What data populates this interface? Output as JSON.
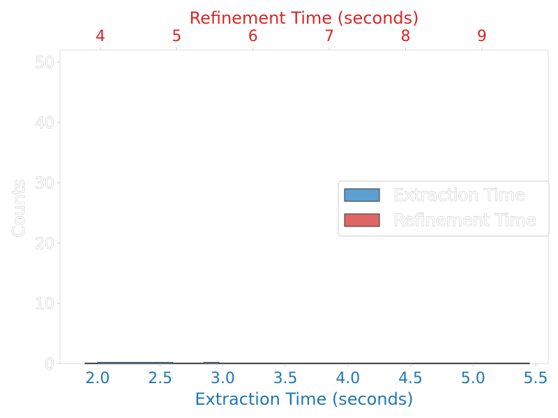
{
  "chart_data": {
    "type": "bar",
    "xlabel": "Extraction Time (seconds)",
    "x2label": "Refinement Time (seconds)",
    "ylabel": "Counts",
    "x_ticks": [
      "2.0",
      "2.5",
      "3.0",
      "3.5",
      "4.0",
      "4.5",
      "5.0",
      "5.5"
    ],
    "x2_ticks": [
      "4",
      "5",
      "6",
      "7",
      "8",
      "9"
    ],
    "y_ticks": [
      "0",
      "10",
      "20",
      "30",
      "40",
      "50"
    ],
    "xlim": [
      1.7,
      5.6
    ],
    "x2lim": [
      3.47,
      9.87
    ],
    "ylim": [
      0,
      52
    ],
    "series": [
      {
        "name": "Extraction Time",
        "axis": "bottom",
        "color": "#1f77b4",
        "bins": [
          {
            "x0": 1.9,
            "x1": 2.0,
            "value": 0
          },
          {
            "x0": 2.0,
            "x1": 2.6,
            "value": 0.2
          },
          {
            "x0": 2.6,
            "x1": 2.85,
            "value": 0
          },
          {
            "x0": 2.85,
            "x1": 2.97,
            "value": 0.2
          },
          {
            "x0": 2.97,
            "x1": 5.45,
            "value": 0
          }
        ]
      },
      {
        "name": "Refinement Time",
        "axis": "top",
        "color": "#d62728",
        "bins": []
      }
    ],
    "legend_position": "center-right",
    "grid": false
  }
}
